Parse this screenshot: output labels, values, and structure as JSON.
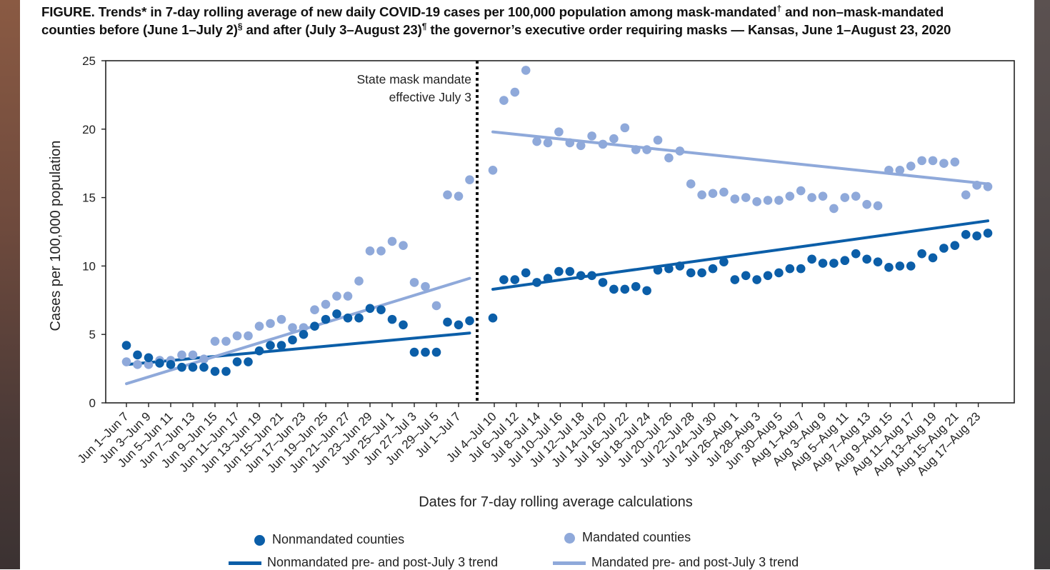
{
  "title": {
    "line1_a": "FIGURE. Trends* in 7-day rolling average of new daily COVID-19 cases per 100,000 population among mask-mandated",
    "sup1": "†",
    "line1_b": " and non–mask-mandated",
    "line2_a": "counties before (June 1–July 2)",
    "sup2": "§",
    "line2_b": " and after (July 3–August 23)",
    "sup3": "¶",
    "line2_c": " the governor’s executive order requiring masks — Kansas, June 1–August 23, 2020"
  },
  "colors": {
    "nonmandated": "#0b5ea8",
    "mandated": "#8fa9da"
  },
  "chart_data": {
    "type": "scatter",
    "xlabel": "Dates for 7-day rolling average calculations",
    "ylabel": "Cases per 100,000 population",
    "ylim": [
      0,
      25
    ],
    "yticks": [
      "0",
      "5",
      "10",
      "15",
      "20",
      "25"
    ],
    "grid": false,
    "legend_placement": "bottom",
    "annotation": {
      "line1": "State mask mandate",
      "line2": "effective July 3"
    },
    "tick_labels_pre": [
      "Jun 1–Jun 7",
      "Jun 3–Jun 9",
      "Jun 5–Jun 11",
      "Jun 7–Jun 13",
      "Jun 9–Jun 15",
      "Jun 11–Jun 17",
      "Jun 13–Jun 19",
      "Jun 15–Jun 21",
      "Jun 17–Jun 23",
      "Jun 19–Jun 25",
      "Jun 21–Jun 27",
      "Jun 23–Jun 29",
      "Jun 25–Jul 1",
      "Jun 27–Jul 3",
      "Jun 29–Jul 5",
      "Jul 1–Jul 7"
    ],
    "tick_labels_post": [
      "Jul 4–Jul 10",
      "Jul 6–Jul 12",
      "Jul 8–Jul 14",
      "Jul 10–Jul 16",
      "Jul 12–Jul 18",
      "Jul 14–Jul 20",
      "Jul 16–Jul 22",
      "Jul 18–Jul 24",
      "Jul 20–Jul 26",
      "Jul 22–Jul 28",
      "Jul 24–Jul 30",
      "Jul 26–Aug 1",
      "Jul 28–Aug 3",
      "Jun 30–Aug 5",
      "Aug 1–Aug 7",
      "Aug 3–Aug 9",
      "Aug 5–Aug 11",
      "Aug 7–Aug 13",
      "Aug 9–Aug 15",
      "Aug 11–Aug 17",
      "Aug 13–Aug 19",
      "Aug 15–Aug 21",
      "Aug 17–Aug 23"
    ],
    "series": [
      {
        "name": "Nonmandated counties",
        "pre": [
          4.2,
          3.5,
          3.3,
          2.9,
          2.8,
          2.6,
          2.6,
          2.6,
          2.3,
          2.3,
          3.0,
          3.0,
          3.8,
          4.2,
          4.2,
          4.6,
          5.0,
          5.6,
          6.1,
          6.5,
          6.2,
          6.2,
          6.9,
          6.8,
          6.1,
          5.7,
          3.7,
          3.7,
          3.7,
          5.9,
          5.7,
          6.0
        ],
        "post": [
          6.2,
          9.0,
          9.0,
          9.5,
          8.8,
          9.1,
          9.6,
          9.6,
          9.3,
          9.3,
          8.8,
          8.3,
          8.3,
          8.5,
          8.2,
          9.7,
          9.8,
          10.0,
          9.5,
          9.5,
          9.8,
          10.3,
          9.0,
          9.3,
          9.0,
          9.3,
          9.5,
          9.8,
          9.8,
          10.5,
          10.2,
          10.2,
          10.4,
          10.9,
          10.5,
          10.3,
          9.9,
          10.0,
          10.0,
          10.9,
          10.6,
          11.3,
          11.5,
          12.3,
          12.2,
          12.4
        ]
      },
      {
        "name": "Mandated counties",
        "pre": [
          3.0,
          2.8,
          2.8,
          3.1,
          3.1,
          3.5,
          3.5,
          3.2,
          4.5,
          4.5,
          4.9,
          4.9,
          5.6,
          5.8,
          6.1,
          5.5,
          5.5,
          6.8,
          7.2,
          7.8,
          7.8,
          8.9,
          11.1,
          11.1,
          11.8,
          11.5,
          8.8,
          8.5,
          7.1,
          15.2,
          15.1,
          16.3
        ],
        "post": [
          17.0,
          22.1,
          22.7,
          24.3,
          19.1,
          19.0,
          19.8,
          19.0,
          18.8,
          19.5,
          18.9,
          19.3,
          20.1,
          18.5,
          18.5,
          19.2,
          17.9,
          18.4,
          16.0,
          15.2,
          15.3,
          15.4,
          14.9,
          15.0,
          14.7,
          14.8,
          14.8,
          15.1,
          15.5,
          15.0,
          15.1,
          14.2,
          15.0,
          15.1,
          14.5,
          14.4,
          17.0,
          17.0,
          17.3,
          17.7,
          17.7,
          17.5,
          17.6,
          15.2,
          15.9,
          15.8
        ]
      }
    ],
    "trends": [
      {
        "name": "Nonmandated pre- and post-July 3 trend",
        "pre": [
          2.8,
          5.1
        ],
        "post": [
          8.3,
          13.3
        ]
      },
      {
        "name": "Mandated pre- and post-July 3 trend",
        "pre": [
          1.4,
          9.1
        ],
        "post": [
          19.8,
          16.0
        ]
      }
    ]
  },
  "legend": {
    "nonmandated_counties": "Nonmandated counties",
    "mandated_counties": "Mandated counties",
    "nonmandated_trend": "Nonmandated pre- and post-July 3 trend",
    "mandated_trend": "Mandated pre- and post-July 3 trend"
  }
}
